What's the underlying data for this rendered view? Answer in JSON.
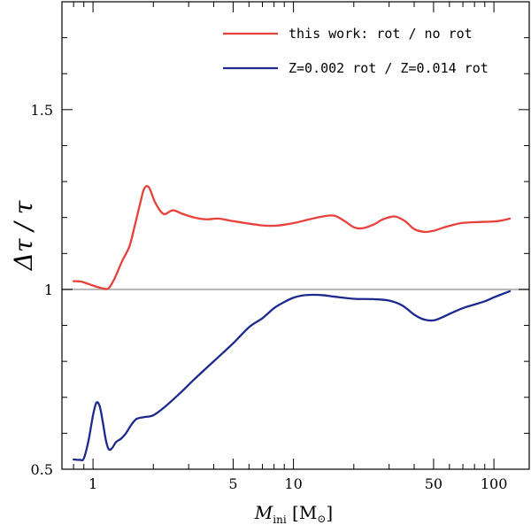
{
  "chart_data": {
    "type": "line",
    "xscale": "log",
    "xlim": [
      0.7,
      150
    ],
    "ylim": [
      0.5,
      1.8
    ],
    "xticks_major": [
      1,
      5,
      10,
      50,
      100
    ],
    "xtick_labels": [
      "1",
      "5",
      "10",
      "50",
      "100"
    ],
    "xticks_minor": [
      0.8,
      0.9,
      2,
      3,
      4,
      6,
      7,
      8,
      9,
      20,
      30,
      40,
      60,
      70,
      80,
      90
    ],
    "yticks_major": [
      0.5,
      1,
      1.5
    ],
    "ytick_labels": [
      "0.5",
      "1",
      "1.5"
    ],
    "yticks_minor": [
      0.6,
      0.7,
      0.8,
      0.9,
      1.1,
      1.2,
      1.3,
      1.4,
      1.6,
      1.7
    ],
    "xlabel": {
      "main": "M",
      "sub": "ini",
      "unit_open": " [M",
      "unit_sun": "⊙",
      "unit_close": "]"
    },
    "ylabel": "Δτ / τ",
    "reference_line": {
      "y": 1.0,
      "color": "#b4b4b4"
    },
    "legend_placement": "top-right",
    "series": [
      {
        "name": "this work: rot / no rot",
        "color": "#e8413c",
        "x": [
          0.8,
          0.87,
          0.95,
          1.05,
          1.14,
          1.2,
          1.28,
          1.4,
          1.52,
          1.62,
          1.72,
          1.8,
          1.9,
          2.05,
          2.25,
          2.5,
          2.8,
          3.2,
          3.7,
          4.2,
          5.0,
          6.0,
          7.0,
          8.0,
          9.0,
          10.5,
          12.0,
          14.0,
          16.0,
          18.0,
          20.0,
          22.0,
          25.0,
          28.0,
          32.0,
          36.0,
          40.0,
          45.0,
          50.0,
          56.0,
          63.0,
          70.0,
          80.0,
          90.0,
          100.0,
          110.0,
          120.0
        ],
        "y": [
          1.023,
          1.022,
          1.015,
          1.007,
          1.002,
          1.004,
          1.03,
          1.08,
          1.12,
          1.18,
          1.24,
          1.28,
          1.284,
          1.24,
          1.21,
          1.22,
          1.21,
          1.2,
          1.195,
          1.197,
          1.19,
          1.183,
          1.178,
          1.177,
          1.18,
          1.187,
          1.195,
          1.203,
          1.205,
          1.19,
          1.173,
          1.17,
          1.18,
          1.195,
          1.203,
          1.19,
          1.168,
          1.16,
          1.163,
          1.172,
          1.18,
          1.185,
          1.187,
          1.188,
          1.189,
          1.192,
          1.197
        ]
      },
      {
        "name": "Z=0.002 rot / Z=0.014 rot",
        "color": "#1c2a8e",
        "x": [
          0.8,
          0.86,
          0.9,
          0.95,
          1.0,
          1.04,
          1.08,
          1.12,
          1.16,
          1.2,
          1.25,
          1.3,
          1.38,
          1.46,
          1.55,
          1.65,
          1.8,
          2.0,
          2.3,
          2.7,
          3.2,
          4.0,
          5.0,
          6.0,
          7.0,
          8.0,
          9.0,
          10.0,
          11.0,
          12.5,
          14.0,
          16.0,
          20.0,
          25.0,
          30.0,
          35.0,
          40.0,
          45.0,
          50.0,
          55.0,
          60.0,
          70.0,
          80.0,
          90.0,
          100.0,
          110.0,
          120.0
        ],
        "y": [
          0.527,
          0.526,
          0.53,
          0.58,
          0.65,
          0.685,
          0.675,
          0.63,
          0.58,
          0.555,
          0.56,
          0.575,
          0.585,
          0.6,
          0.623,
          0.64,
          0.645,
          0.65,
          0.675,
          0.71,
          0.75,
          0.8,
          0.85,
          0.895,
          0.92,
          0.948,
          0.965,
          0.977,
          0.983,
          0.985,
          0.984,
          0.98,
          0.974,
          0.973,
          0.969,
          0.955,
          0.93,
          0.916,
          0.914,
          0.922,
          0.932,
          0.948,
          0.958,
          0.967,
          0.978,
          0.987,
          0.995
        ]
      }
    ]
  }
}
